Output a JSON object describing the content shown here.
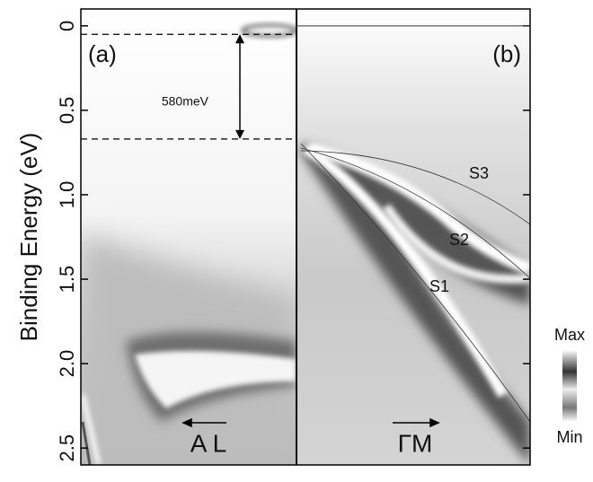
{
  "chart_data": {
    "type": "image",
    "y_label": "Binding Energy (eV)",
    "ylim": [
      -0.1,
      2.6
    ],
    "y_inverted": true,
    "yticks": [
      0,
      0.5,
      {
        "value": 1,
        "label": "1.0"
      },
      1.5,
      {
        "value": 2,
        "label": "2.0"
      },
      2.5
    ],
    "panels": [
      {
        "label": "(a)",
        "direction": "A L"
      },
      {
        "label": "(b)",
        "direction": "ΓM"
      }
    ],
    "annotation": {
      "text": "580meV",
      "from": 0.05,
      "to": 0.67
    },
    "bands": [
      "S1",
      "S2",
      "S3"
    ],
    "colorbar": {
      "max_label": "Max",
      "min_label": "Min"
    }
  }
}
